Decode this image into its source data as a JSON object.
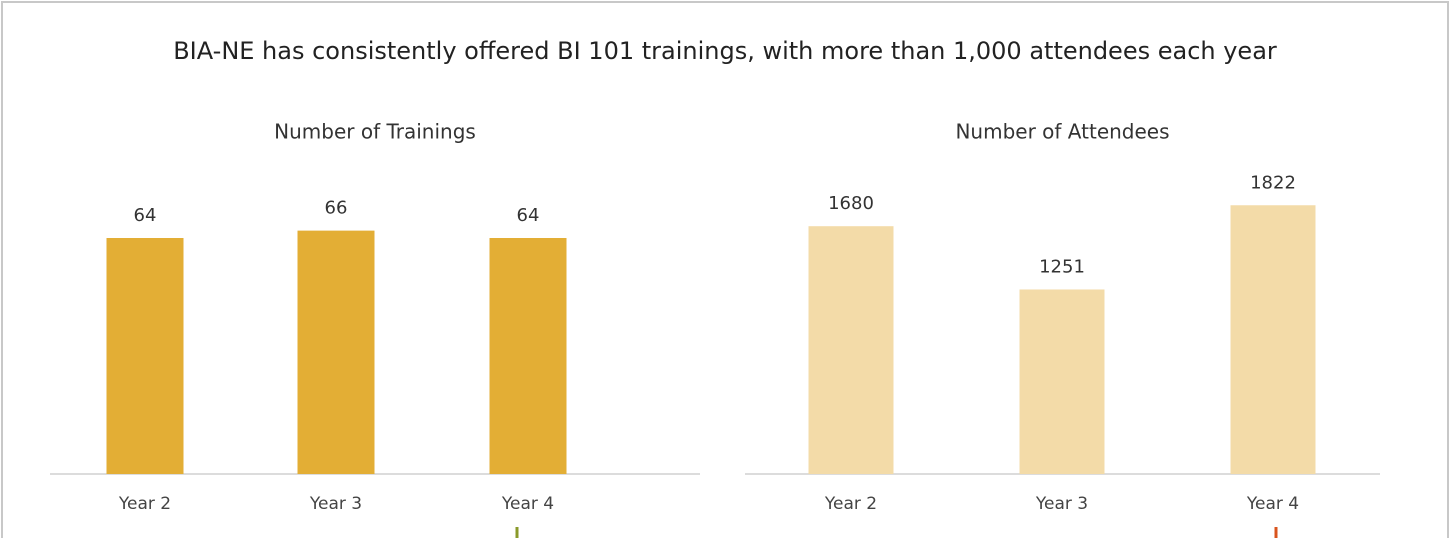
{
  "title": "BIA-NE has consistently offered BI 101 trainings, with more than 1,000 attendees each year",
  "chart_data": [
    {
      "type": "bar",
      "title": "Number of Trainings",
      "categories": [
        "Year 2",
        "Year 3",
        "Year 4"
      ],
      "values": [
        64,
        66,
        64
      ],
      "color": "#e3ae35",
      "ylim": [
        0,
        80
      ],
      "grid": false
    },
    {
      "type": "bar",
      "title": "Number of Attendees",
      "categories": [
        "Year 2",
        "Year 3",
        "Year 4"
      ],
      "values": [
        1680,
        1251,
        1822
      ],
      "color": "#f3dba8",
      "ylim": [
        0,
        2000
      ],
      "grid": false
    }
  ]
}
